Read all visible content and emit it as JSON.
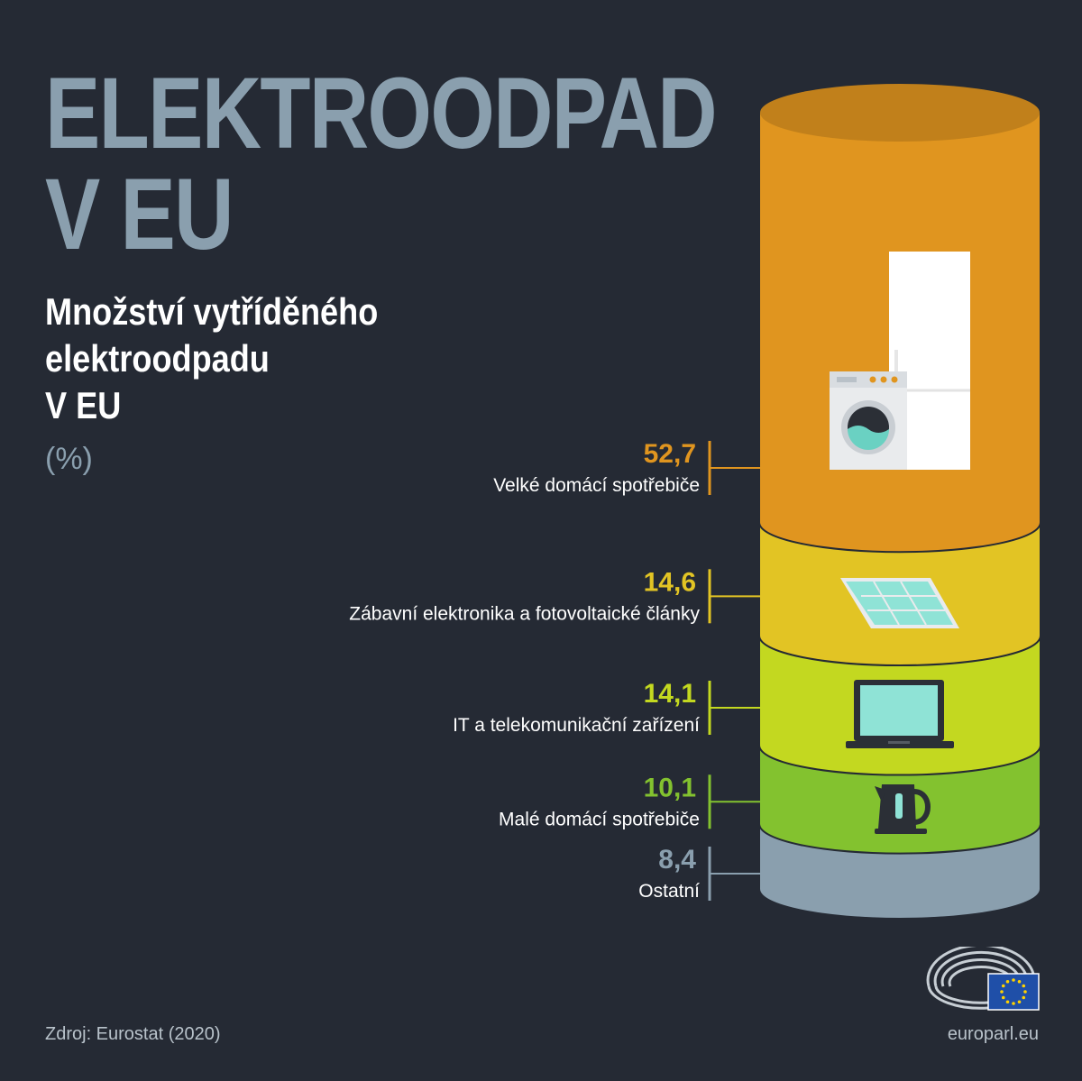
{
  "header": {
    "title_line1": "ELEKTROODPAD",
    "title_line2": "V EU",
    "subtitle_line1": "Množství vytříděného",
    "subtitle_line2": "elektroodpadu",
    "subtitle_line3": "V EU",
    "unit": "(%)"
  },
  "chart_data": {
    "type": "bar",
    "stacked": true,
    "categories": [
      "Velké domácí spotřebiče",
      "Zábavní elektronika a fotovoltaické články",
      "IT a telekomunikační zařízení",
      "Malé domácí spotřebiče",
      "Ostatní"
    ],
    "values": [
      52.7,
      14.6,
      14.1,
      10.1,
      8.4
    ],
    "value_labels": [
      "52,7",
      "14,6",
      "14,1",
      "10,1",
      "8,4"
    ],
    "colors": [
      "#e0951f",
      "#e2c424",
      "#c3d820",
      "#83c22f",
      "#8a9fae"
    ],
    "icons": [
      "fridge-washing-machine-icon",
      "solar-panel-icon",
      "laptop-icon",
      "kettle-icon",
      ""
    ]
  },
  "footer": {
    "source": "Zdroj: Eurostat (2020)",
    "site": "europarl.eu"
  }
}
